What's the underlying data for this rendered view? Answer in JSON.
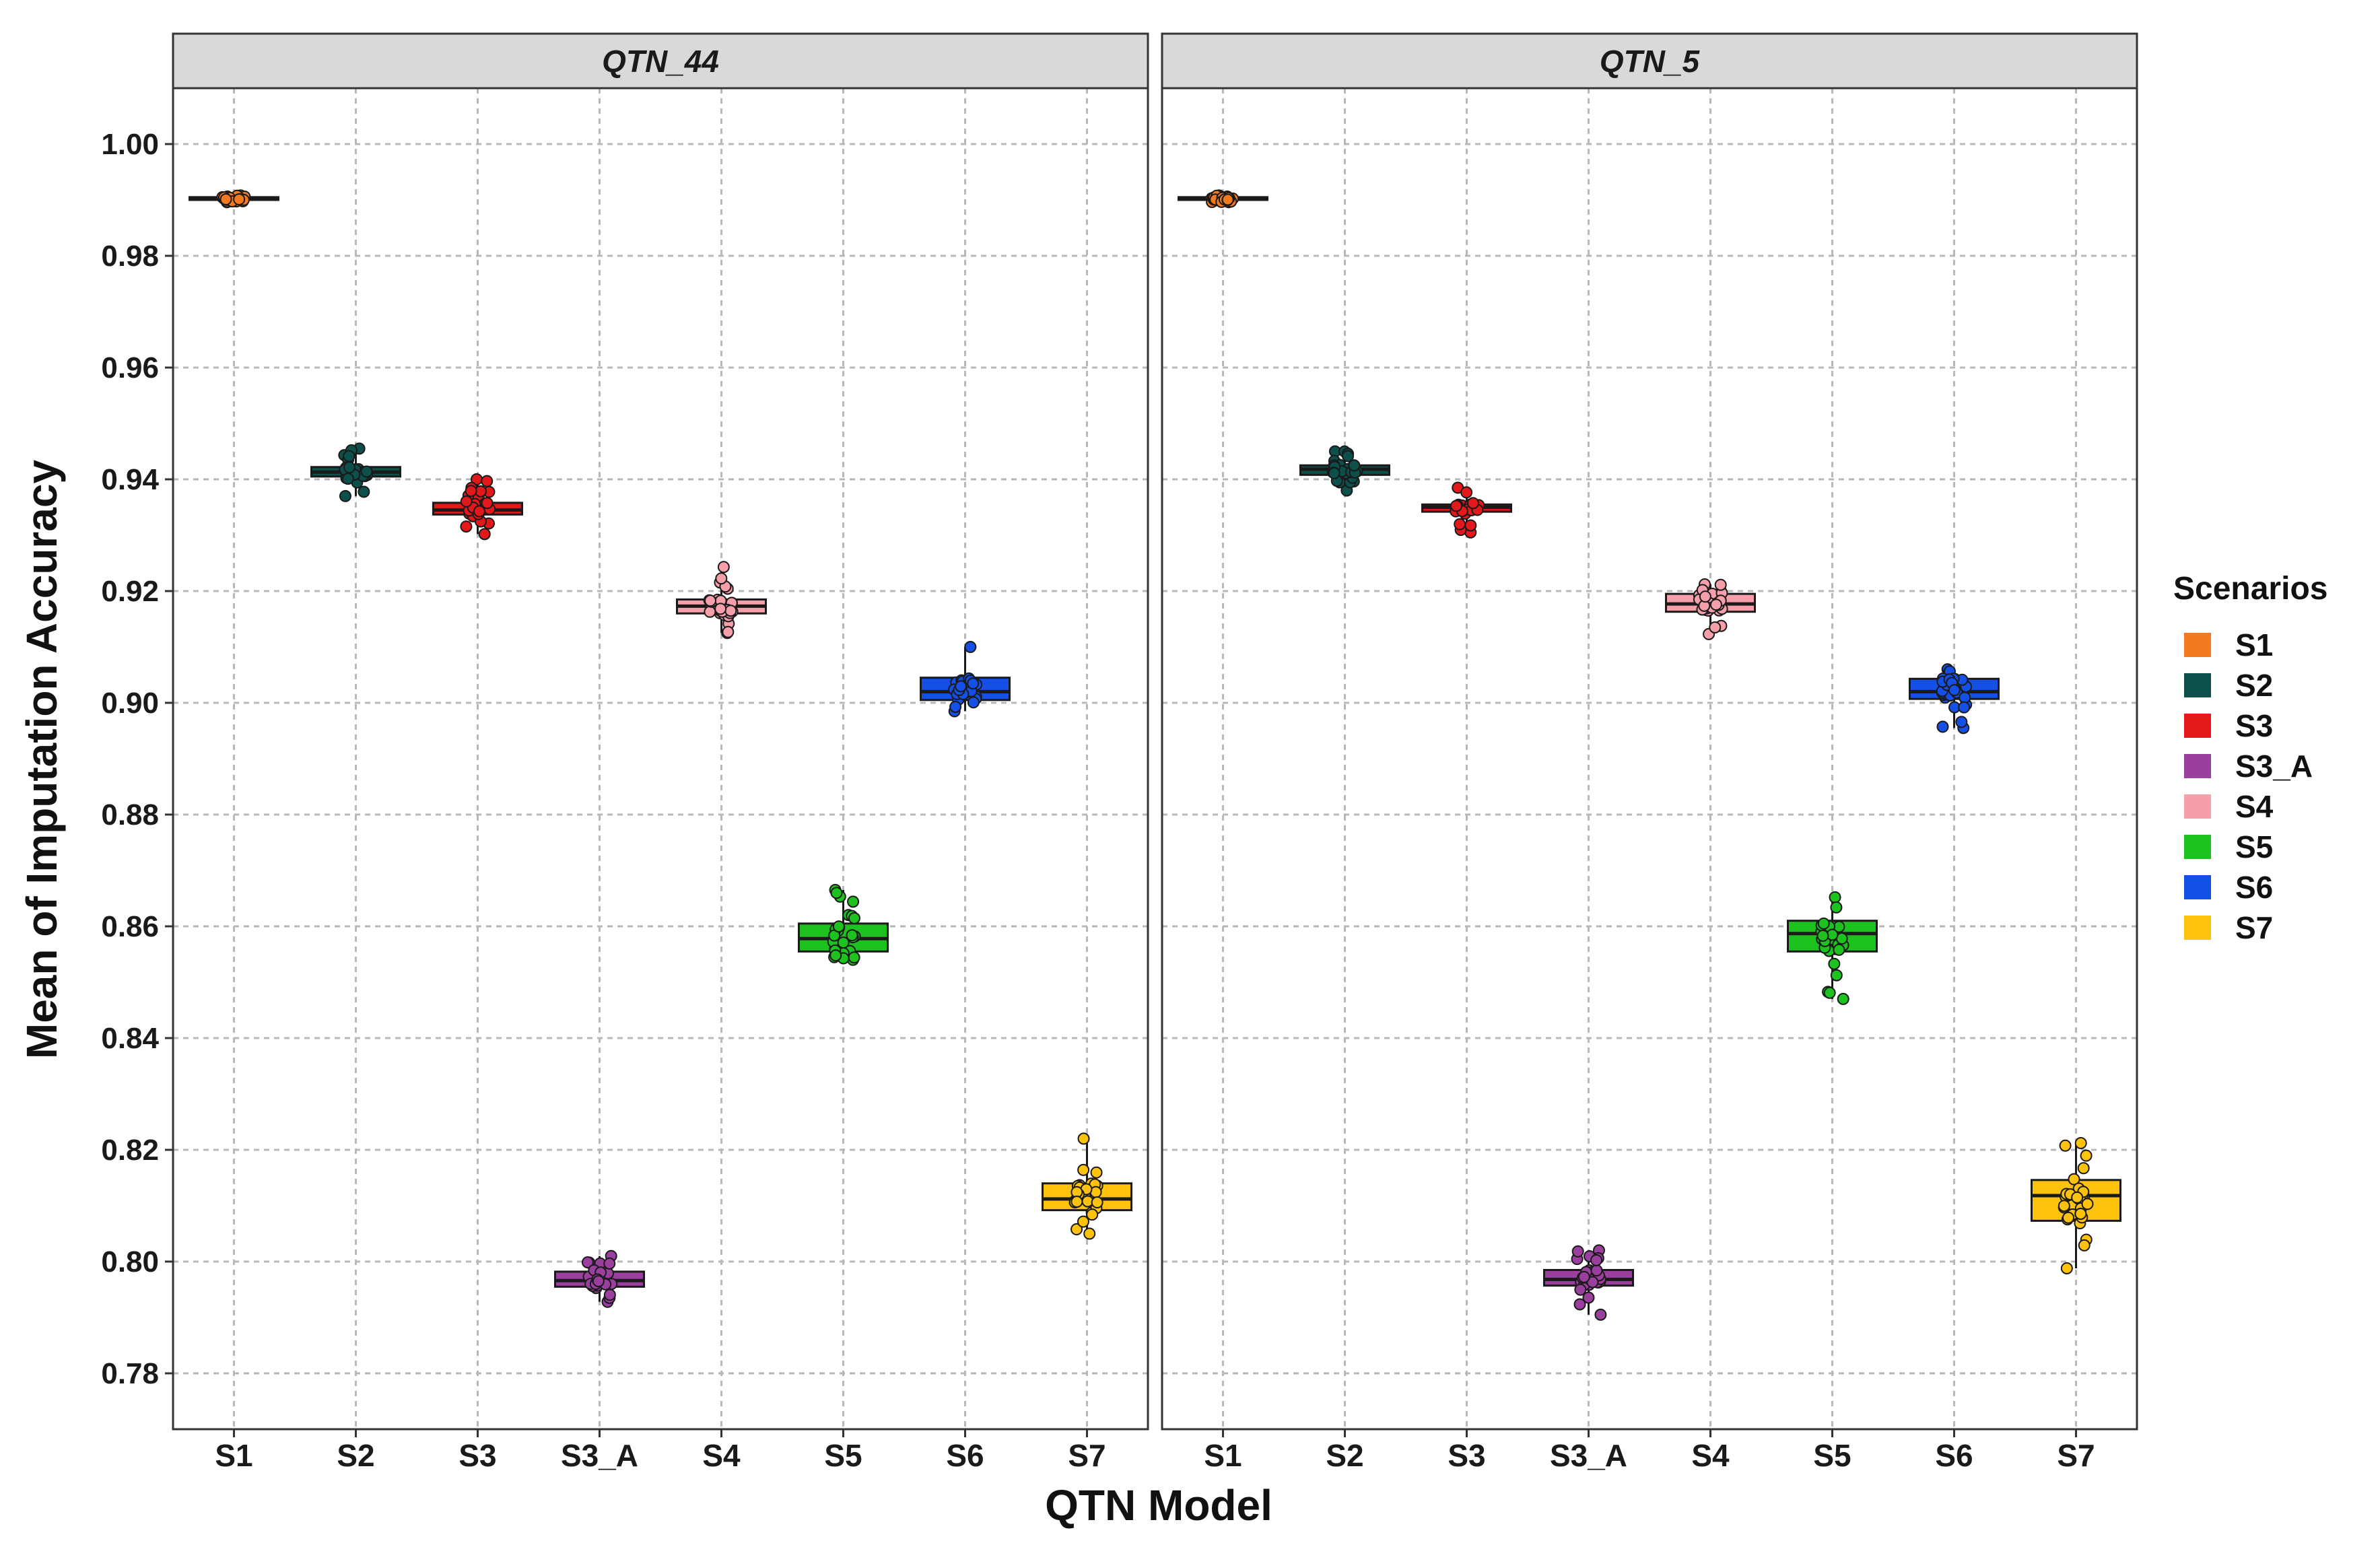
{
  "chart_data": {
    "type": "boxplot",
    "xlabel": "QTN Model",
    "ylabel": "Mean of Imputation Accuracy",
    "ylim": [
      0.77,
      1.01
    ],
    "yticks": [
      "0.78",
      "0.80",
      "0.82",
      "0.84",
      "0.86",
      "0.88",
      "0.90",
      "0.92",
      "0.94",
      "0.96",
      "0.98",
      "1.00"
    ],
    "categories": [
      "S1",
      "S2",
      "S3",
      "S3_A",
      "S4",
      "S5",
      "S6",
      "S7"
    ],
    "grid": true,
    "legend": {
      "title": "Scenarios",
      "position": "right",
      "items": [
        {
          "label": "S1",
          "color": "#f47a20"
        },
        {
          "label": "S2",
          "color": "#0d4f4a"
        },
        {
          "label": "S3",
          "color": "#e4171a"
        },
        {
          "label": "S3_A",
          "color": "#9b3f9e"
        },
        {
          "label": "S4",
          "color": "#f59fab"
        },
        {
          "label": "S5",
          "color": "#1ec21e"
        },
        {
          "label": "S6",
          "color": "#1450e6"
        },
        {
          "label": "S7",
          "color": "#fdc20b"
        }
      ]
    },
    "panels": [
      {
        "title": "QTN_44",
        "series": [
          {
            "name": "S1",
            "q1": 0.99,
            "median": 0.9903,
            "q3": 0.9905,
            "min": 0.9896,
            "max": 0.9908
          },
          {
            "name": "S2",
            "q1": 0.9405,
            "median": 0.9413,
            "q3": 0.9422,
            "min": 0.937,
            "max": 0.9455
          },
          {
            "name": "S3",
            "q1": 0.9337,
            "median": 0.9345,
            "q3": 0.9358,
            "min": 0.9302,
            "max": 0.94
          },
          {
            "name": "S3_A",
            "q1": 0.7955,
            "median": 0.7966,
            "q3": 0.7982,
            "min": 0.7928,
            "max": 0.801
          },
          {
            "name": "S4",
            "q1": 0.916,
            "median": 0.9173,
            "q3": 0.9185,
            "min": 0.9125,
            "max": 0.9243
          },
          {
            "name": "S5",
            "q1": 0.8555,
            "median": 0.8578,
            "q3": 0.8605,
            "min": 0.854,
            "max": 0.8665
          },
          {
            "name": "S6",
            "q1": 0.9005,
            "median": 0.902,
            "q3": 0.9045,
            "min": 0.8985,
            "max": 0.91
          },
          {
            "name": "S7",
            "q1": 0.8092,
            "median": 0.8112,
            "q3": 0.814,
            "min": 0.805,
            "max": 0.822
          }
        ]
      },
      {
        "title": "QTN_5",
        "series": [
          {
            "name": "S1",
            "q1": 0.99,
            "median": 0.9903,
            "q3": 0.9905,
            "min": 0.9896,
            "max": 0.9908
          },
          {
            "name": "S2",
            "q1": 0.9408,
            "median": 0.9418,
            "q3": 0.9425,
            "min": 0.938,
            "max": 0.945
          },
          {
            "name": "S3",
            "q1": 0.9342,
            "median": 0.935,
            "q3": 0.9355,
            "min": 0.9305,
            "max": 0.9385
          },
          {
            "name": "S3_A",
            "q1": 0.7957,
            "median": 0.7968,
            "q3": 0.7985,
            "min": 0.7905,
            "max": 0.802
          },
          {
            "name": "S4",
            "q1": 0.9163,
            "median": 0.9177,
            "q3": 0.9195,
            "min": 0.9123,
            "max": 0.9212
          },
          {
            "name": "S5",
            "q1": 0.8555,
            "median": 0.8587,
            "q3": 0.861,
            "min": 0.847,
            "max": 0.8652
          },
          {
            "name": "S6",
            "q1": 0.9007,
            "median": 0.902,
            "q3": 0.9043,
            "min": 0.8955,
            "max": 0.906
          },
          {
            "name": "S7",
            "q1": 0.8073,
            "median": 0.8118,
            "q3": 0.8146,
            "min": 0.7988,
            "max": 0.8212
          }
        ]
      }
    ]
  }
}
